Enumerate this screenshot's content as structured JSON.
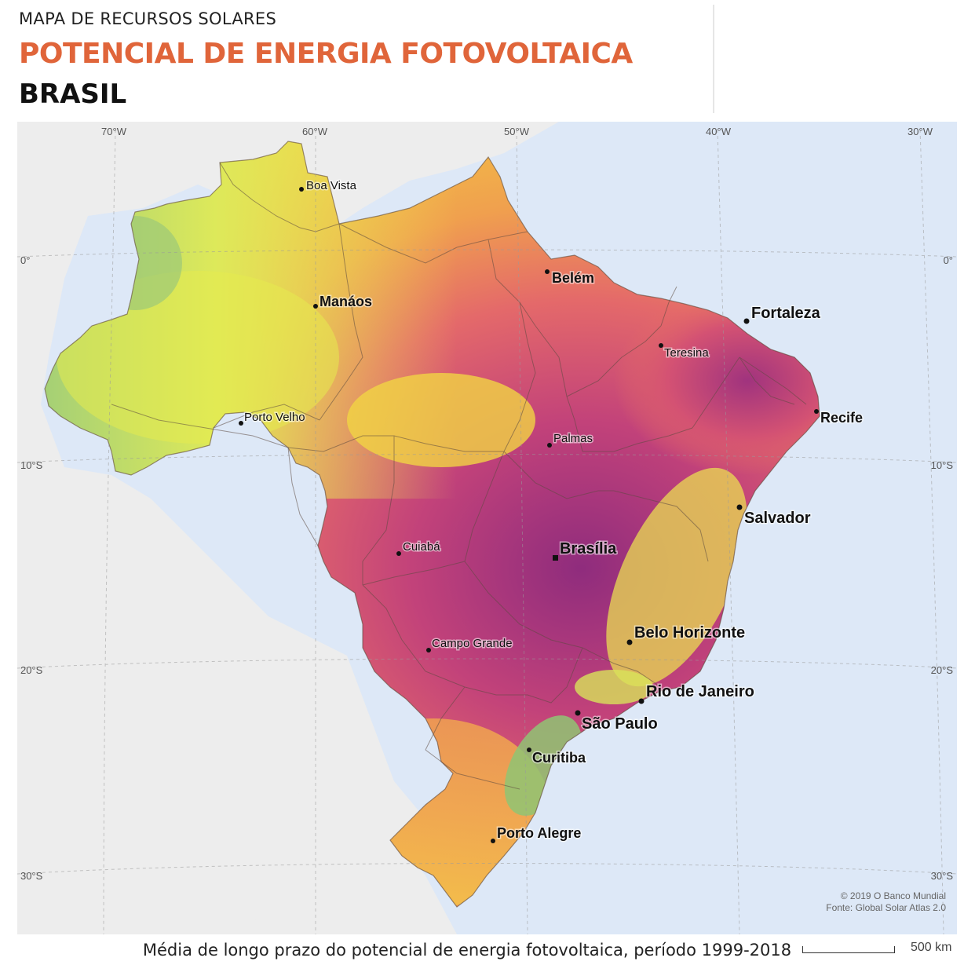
{
  "header": {
    "overline": "MAPA DE RECURSOS SOLARES",
    "title": "POTENCIAL DE ENERGIA FOTOVOLTAICA",
    "country": "BRASIL"
  },
  "map": {
    "longitude_labels": [
      "70°W",
      "60°W",
      "50°W",
      "40°W",
      "30°W"
    ],
    "latitude_labels_left": [
      "0°",
      "10°S",
      "20°S",
      "30°S"
    ],
    "latitude_labels_right": [
      "0°",
      "10°S",
      "20°S",
      "30°S"
    ],
    "cities": [
      {
        "name": "Boa Vista",
        "size": "small"
      },
      {
        "name": "Belém",
        "size": "medium"
      },
      {
        "name": "Manáos",
        "size": "medium"
      },
      {
        "name": "Fortaleza",
        "size": "large"
      },
      {
        "name": "Teresina",
        "size": "small"
      },
      {
        "name": "Recife",
        "size": "medium"
      },
      {
        "name": "Porto Velho",
        "size": "small"
      },
      {
        "name": "Palmas",
        "size": "small"
      },
      {
        "name": "Salvador",
        "size": "large"
      },
      {
        "name": "Cuiabá",
        "size": "small"
      },
      {
        "name": "Brasília",
        "size": "large"
      },
      {
        "name": "Belo Horizonte",
        "size": "large"
      },
      {
        "name": "Campo Grande",
        "size": "small"
      },
      {
        "name": "Rio de Janeiro",
        "size": "large"
      },
      {
        "name": "São Paulo",
        "size": "large"
      },
      {
        "name": "Curitiba",
        "size": "medium"
      },
      {
        "name": "Porto Alegre",
        "size": "medium"
      }
    ],
    "credit_line1": "© 2019 O Banco Mundial",
    "credit_line2": "Fonte: Global Solar Atlas 2.0",
    "colors": {
      "ocean": "#dde8f7",
      "land_outside": "#ededed",
      "low": "#8fc473",
      "mid_low": "#e7ea4f",
      "mid": "#f6c83e",
      "mid_high": "#ef8d58",
      "high": "#d9506f",
      "very_high": "#a8347d"
    }
  },
  "footer": {
    "caption": "Média de longo prazo do potencial de energia fotovoltaica, período 1999-2018",
    "scale_label": "500 km"
  }
}
